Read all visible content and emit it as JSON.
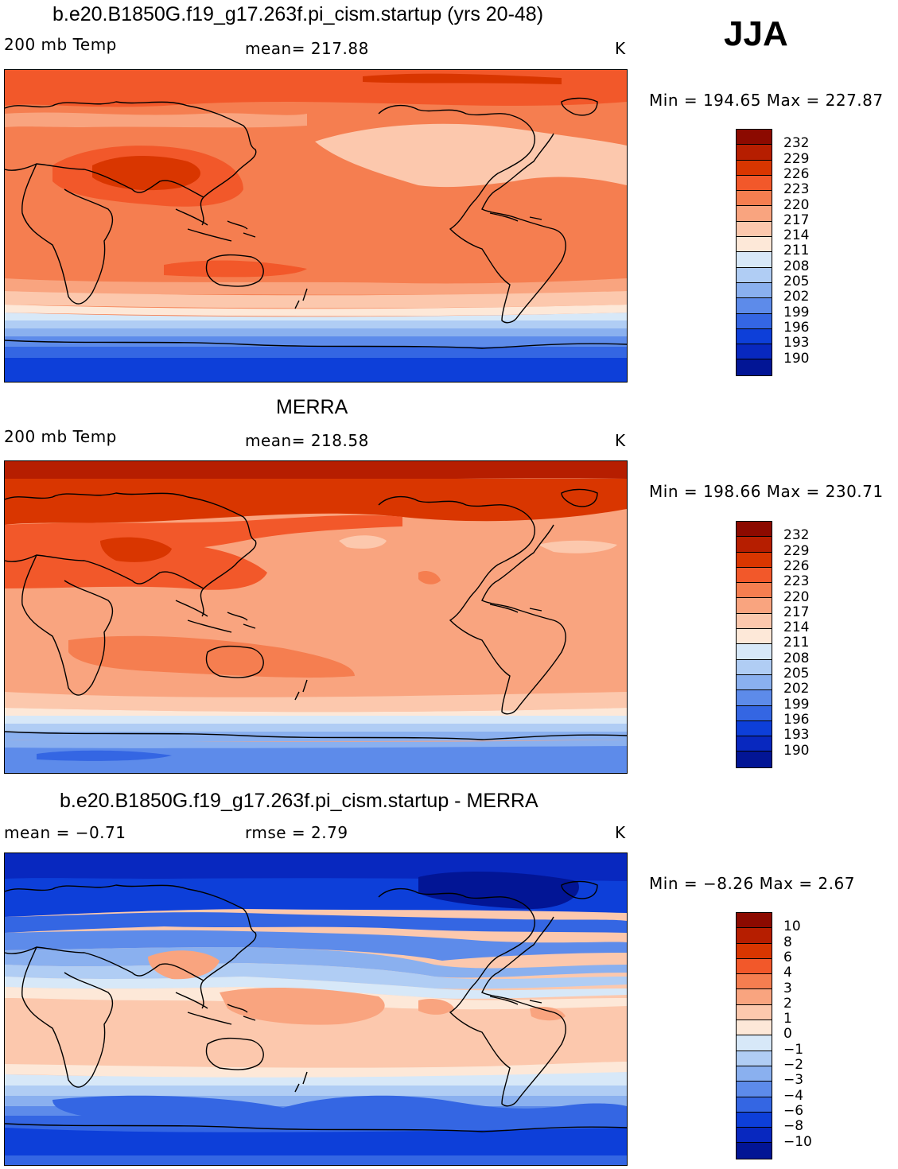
{
  "season": "JJA",
  "panels": [
    {
      "title": "b.e20.B1850G.f19_g17.263f.pi_cism.startup (yrs 20-48)",
      "left_label": "200 mb Temp",
      "center_label": "mean= 217.88",
      "units": "K",
      "minmax": "Min = 194.65 Max = 227.87"
    },
    {
      "title": "MERRA",
      "left_label": "200 mb Temp",
      "center_label": "mean= 218.58",
      "units": "K",
      "minmax": "Min = 198.66 Max = 230.71"
    },
    {
      "title": "b.e20.B1850G.f19_g17.263f.pi_cism.startup - MERRA",
      "left_label": "mean =   −0.71",
      "center_label": "rmse =     2.79",
      "units": "K",
      "minmax": "Min =   −8.26 Max =     2.67"
    }
  ],
  "colorbars": {
    "abs_levels": [
      "232",
      "229",
      "226",
      "223",
      "220",
      "217",
      "214",
      "211",
      "208",
      "205",
      "202",
      "199",
      "196",
      "193",
      "190"
    ],
    "diff_levels": [
      "10",
      "8",
      "6",
      "4",
      "3",
      "2",
      "1",
      "0",
      "−1",
      "−2",
      "−3",
      "−4",
      "−6",
      "−8",
      "−10"
    ],
    "colors": [
      "#8c0a00",
      "#b61e00",
      "#d93600",
      "#f05a28",
      "#f57e50",
      "#f9a47f",
      "#fcc8ad",
      "#fde8d8",
      "#ffffff",
      "#d7e8f8",
      "#b0cdf4",
      "#8ab0ef",
      "#5d8bea",
      "#3466e3",
      "#0d3fd9",
      "#0828bf",
      "#021595",
      "#000080"
    ],
    "cbar_colors": [
      "#8c0a00",
      "#b61e00",
      "#d93600",
      "#f2582a",
      "#f57e50",
      "#f9a47f",
      "#fcc8ad",
      "#fde8d8",
      "#d7e8f8",
      "#b0cdf4",
      "#8ab0ef",
      "#5d8bea",
      "#3466e3",
      "#0d3fd9",
      "#0828bf",
      "#021595",
      "#000080"
    ]
  }
}
